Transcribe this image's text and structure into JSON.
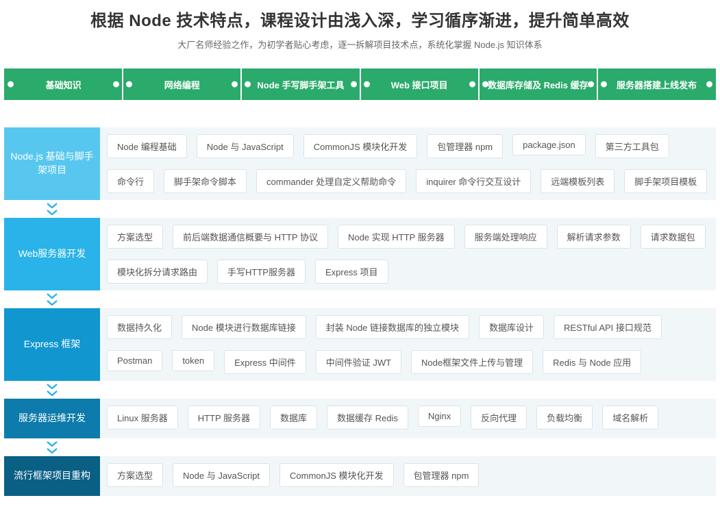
{
  "header": {
    "title": "根据 Node 技术特点，课程设计由浅入深，学习循序渐进，提升简单高效",
    "subtitle": "大厂名师经验之作，为初学者贴心考虑，逐一拆解项目技术点，系统化掌握 Node.js 知识体系",
    "title_color": "#333333",
    "subtitle_color": "#666666"
  },
  "strip": {
    "bg_color": "#2aaa6b",
    "text_color": "#ffffff",
    "dot_color": "#ffffff",
    "steps": [
      "基础知识",
      "网络编程",
      "Node 手写脚手架工具",
      "Web 接口项目",
      "数据库存储及 Redis 缓存",
      "服务器搭建上线发布"
    ]
  },
  "body_panel_bg": "#f1f6f9",
  "tag_style": {
    "bg": "#ffffff",
    "border": "#d9e4ea",
    "text": "#555555"
  },
  "connector_color": "#29b3e8",
  "sections": [
    {
      "label": "Node.js 基础与脚手架项目",
      "color": "#58c7ef",
      "tags": [
        "Node 编程基础",
        "Node 与 JavaScript",
        "CommonJS 模块化开发",
        "包管理器 npm",
        "package.json",
        "第三方工具包",
        "命令行",
        "脚手架命令脚本",
        "commander 处理自定义帮助命令",
        "inquirer 命令行交互设计",
        "远端模板列表",
        "脚手架项目模板"
      ]
    },
    {
      "label": "Web服务器开发",
      "color": "#29b3e8",
      "tags": [
        "方案选型",
        "前后端数据通信概要与 HTTP 协议",
        "Node 实现 HTTP 服务器",
        "服务端处理响应",
        "解析请求参数",
        "请求数据包",
        "模块化拆分请求路由",
        "手写HTTP服务器",
        "Express 项目"
      ]
    },
    {
      "label": "Express 框架",
      "color": "#1196cf",
      "tags": [
        "数据持久化",
        "Node 模块进行数据库链接",
        "封装 Node 链接数据库的独立模块",
        "数据库设计",
        "RESTful API 接口规范",
        "Postman",
        "token",
        "Express 中间件",
        "中间件验证 JWT",
        "Node框架文件上传与管理",
        "Redis 与 Node 应用"
      ]
    },
    {
      "label": "服务器运维开发",
      "color": "#0d7bab",
      "tags": [
        "Linux 服务器",
        "HTTP 服务器",
        "数据库",
        "数据缓存 Redis",
        "Nginx",
        "反向代理",
        "负载均衡",
        "域名解析"
      ]
    },
    {
      "label": "流行框架项目重构",
      "color": "#0a5f85",
      "tags": [
        "方案选型",
        "Node 与 JavaScript",
        "CommonJS 模块化开发",
        "包管理器 npm"
      ]
    }
  ]
}
